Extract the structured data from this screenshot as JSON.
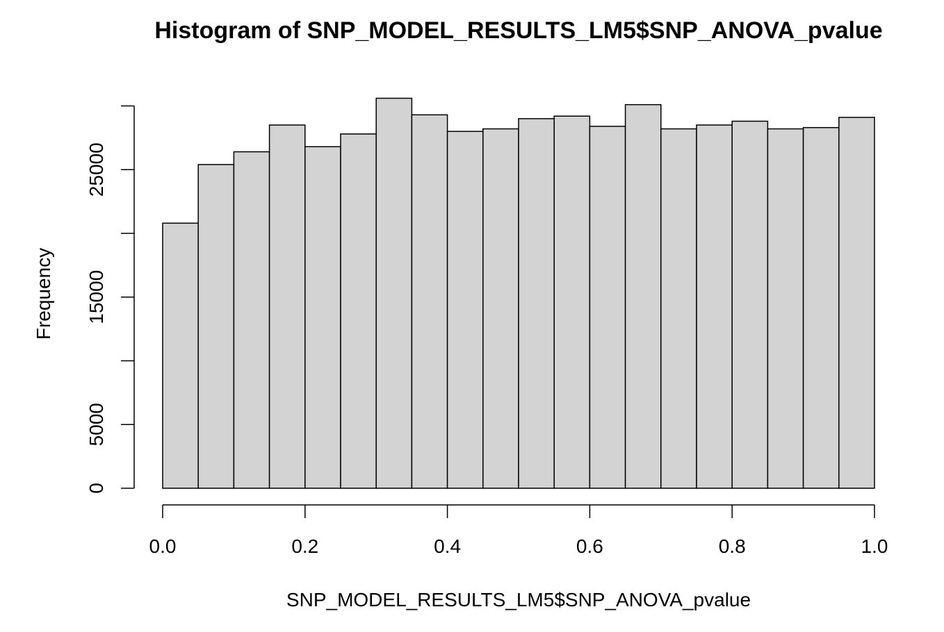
{
  "chart_data": {
    "type": "bar",
    "title": "Histogram of SNP_MODEL_RESULTS_LM5$SNP_ANOVA_pvalue",
    "xlabel": "SNP_MODEL_RESULTS_LM5$SNP_ANOVA_pvalue",
    "ylabel": "Frequency",
    "bin_edges": [
      0.0,
      0.05,
      0.1,
      0.15,
      0.2,
      0.25,
      0.3,
      0.35,
      0.4,
      0.45,
      0.5,
      0.55,
      0.6,
      0.65,
      0.7,
      0.75,
      0.8,
      0.85,
      0.9,
      0.95,
      1.0
    ],
    "values": [
      20800,
      25400,
      26400,
      28500,
      26800,
      27800,
      30600,
      29300,
      28000,
      28200,
      29000,
      29200,
      28400,
      30100,
      28200,
      28500,
      28800,
      28200,
      28300,
      29100
    ],
    "xlim": [
      0,
      1
    ],
    "ylim": [
      0,
      30000
    ],
    "x_ticks": [
      0.0,
      0.2,
      0.4,
      0.6,
      0.8,
      1.0
    ],
    "x_tick_labels": [
      "0.0",
      "0.2",
      "0.4",
      "0.6",
      "0.8",
      "1.0"
    ],
    "y_ticks": [
      0,
      5000,
      10000,
      15000,
      20000,
      25000,
      30000
    ],
    "y_tick_labels": [
      "0",
      "5000",
      "",
      "15000",
      "",
      "25000",
      ""
    ],
    "colors": {
      "bar_fill": "#d3d3d3",
      "bar_stroke": "#000000"
    }
  }
}
